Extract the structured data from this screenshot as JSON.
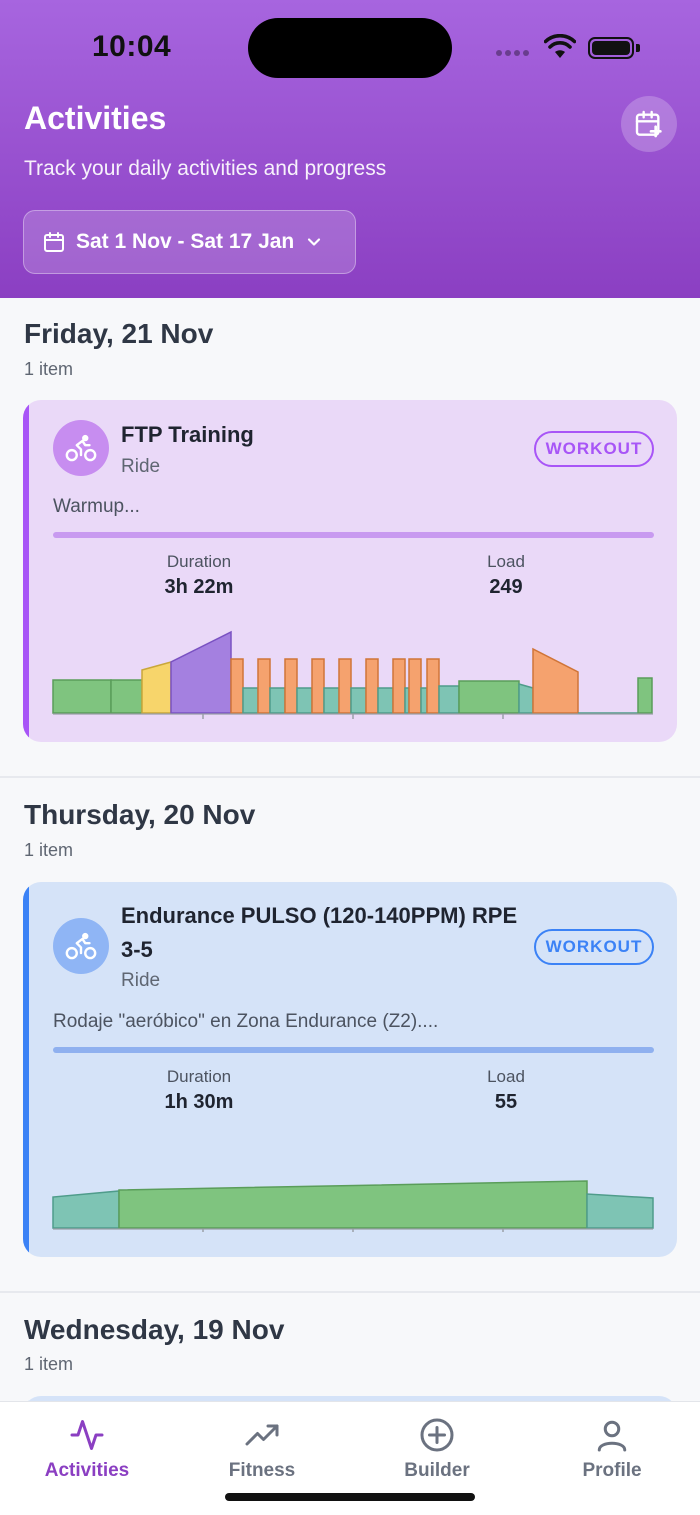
{
  "status_bar": {
    "time": "10:04"
  },
  "header": {
    "title": "Activities",
    "subtitle": "Track your daily activities and progress",
    "date_range": "Sat 1 Nov - Sat 17 Jan"
  },
  "days": [
    {
      "title": "Friday, 21 Nov",
      "count": "1 item",
      "activity": {
        "name": "FTP Training",
        "type": "Ride",
        "badge": "WORKOUT",
        "description": "Warmup...",
        "duration_label": "Duration",
        "duration": "3h 22m",
        "load_label": "Load",
        "load": "249",
        "accent": "#a855f7",
        "card_bg": "#ead9f8"
      }
    },
    {
      "title": "Thursday, 20 Nov",
      "count": "1 item",
      "activity": {
        "name": "Endurance PULSO (120-140PPM) RPE 3-5",
        "type": "Ride",
        "badge": "WORKOUT",
        "description": "Rodaje \"aeróbico\" en Zona Endurance (Z2)....",
        "duration_label": "Duration",
        "duration": "1h 30m",
        "load_label": "Load",
        "load": "55",
        "accent": "#3b82f6",
        "card_bg": "#d5e3f8"
      }
    },
    {
      "title": "Wednesday, 19 Nov",
      "count": "1 item"
    }
  ],
  "tabs": [
    {
      "label": "Activities",
      "icon": "activity-pulse-icon",
      "active": true
    },
    {
      "label": "Fitness",
      "icon": "trending-up-icon",
      "active": false
    },
    {
      "label": "Builder",
      "icon": "plus-circle-icon",
      "active": false
    },
    {
      "label": "Profile",
      "icon": "user-icon",
      "active": false
    }
  ],
  "colors": {
    "brand": "#9b4fd6",
    "active_tab": "#8b3fc2",
    "inactive_tab": "#6b7280"
  }
}
